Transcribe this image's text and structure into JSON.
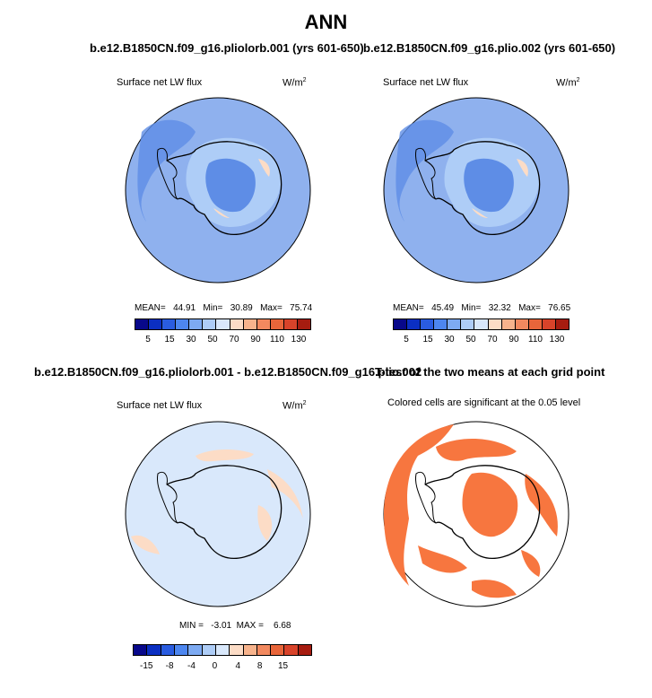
{
  "title": "ANN",
  "panels": [
    {
      "title": "b.e12.B1850CN.f09_g16.pliolorb.001 (yrs 601-650)",
      "subtitle": "Surface net LW flux",
      "units": "W/m",
      "units_sup": "2",
      "stats": "MEAN=   44.91   Min=   30.89   Max=   75.74"
    },
    {
      "title": "b.e12.B1850CN.f09_g16.plio.002 (yrs 601-650)",
      "subtitle": "Surface net LW flux",
      "units": "W/m",
      "units_sup": "2",
      "stats": "MEAN=   45.49   Min=   32.32   Max=   76.65"
    },
    {
      "title": "b.e12.B1850CN.f09_g16.pliolorb.001 - b.e12.B1850CN.f09_g16.plio.002",
      "subtitle": "Surface net LW flux",
      "units": "W/m",
      "units_sup": "2",
      "stats": "MIN =   -3.01  MAX =    6.68"
    },
    {
      "title": "T-test of the two means at each grid point",
      "subtitle": "Colored cells are significant at the 0.05 level"
    }
  ],
  "colorbar_abs": {
    "colors": [
      "#08088a",
      "#0b2fc2",
      "#2a5ce0",
      "#4d86ef",
      "#7daaf2",
      "#aecdf7",
      "#d9e8fb",
      "#fcdcc6",
      "#f7b38c",
      "#f2895f",
      "#e8653a",
      "#d8432a",
      "#a61c10"
    ],
    "labels": [
      "5",
      "15",
      "30",
      "50",
      "70",
      "90",
      "110",
      "130"
    ]
  },
  "colorbar_diff": {
    "colors": [
      "#08088a",
      "#0b2fc2",
      "#2a5ce0",
      "#4d86ef",
      "#7daaf2",
      "#aecdf7",
      "#d9e8fb",
      "#fcdcc6",
      "#f7b38c",
      "#f2895f",
      "#e8653a",
      "#d8432a",
      "#a61c10"
    ],
    "labels": [
      "-15",
      "-8",
      "-4",
      "0",
      "4",
      "8",
      "15"
    ]
  },
  "colors": {
    "ocean_abs": "#8fb1ee",
    "ice_abs": "#5e8de6",
    "ocean_diff": "#d9e8fb",
    "pos_diff": "#fcdcc6",
    "significant": "#f7763f",
    "coast": "#000000"
  }
}
